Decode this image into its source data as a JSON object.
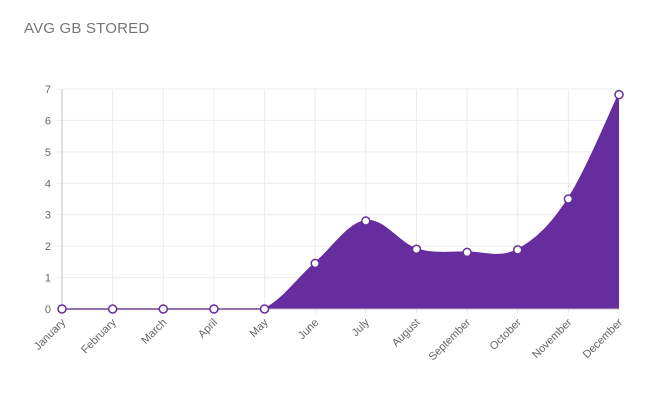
{
  "title": "AVG GB STORED",
  "colors": {
    "fill": "#662d9f",
    "line": "#662d9f",
    "grid": "#ececec",
    "axis": "#bdbdbd",
    "point_fill": "#ffffff",
    "point_stroke": "#662d9f"
  },
  "chart_data": {
    "type": "area",
    "categories": [
      "January",
      "February",
      "March",
      "April",
      "May",
      "June",
      "July",
      "August",
      "September",
      "October",
      "November",
      "December"
    ],
    "series": [
      {
        "values": [
          0,
          0,
          0,
          0,
          0,
          1.45,
          2.8,
          1.9,
          1.8,
          1.88,
          3.5,
          6.82
        ]
      }
    ],
    "ylim": [
      0,
      7
    ],
    "yticks": [
      "0",
      "1",
      "2",
      "3",
      "4",
      "5",
      "6",
      "7"
    ],
    "grid": true,
    "legend": "none"
  }
}
